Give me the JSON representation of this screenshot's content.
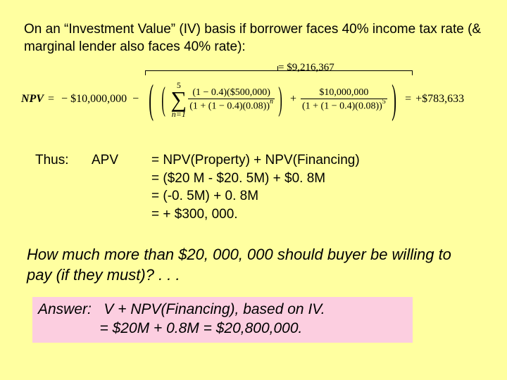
{
  "colors": {
    "slide_bg": "#ffffa0",
    "answer_bg": "#fccee0",
    "text": "#000000"
  },
  "intro": "On an “Investment Value” (IV) basis if borrower faces 40% income tax rate (& marginal lender also faces 40% rate):",
  "annot_top": "= $9,216,367",
  "formula": {
    "lhs": "NPV",
    "eq1": "=",
    "term1_minus": "−",
    "term1": "$10,000,000",
    "big_minus": "−",
    "sigma_top": "5",
    "sigma_bottom": "n=1",
    "frac1_num": "(1 − 0.4)($500,000)",
    "frac1_den_base": "(1 + (1 − 0.4)(0.08))",
    "frac1_exp": "n",
    "plus": "+",
    "frac2_num": "$10,000,000",
    "frac2_den_base": "(1 + (1 − 0.4)(0.08))",
    "frac2_exp": "5",
    "eq2": "=",
    "rhs": "+$783,633"
  },
  "thus": {
    "label": "Thus:",
    "apv": "APV",
    "line1": "= NPV(Property) + NPV(Financing)",
    "line2": "= ($20 M - $20. 5M) + $0. 8M",
    "line3": "= (-0. 5M) + 0. 8M",
    "line4": "= + $300, 000."
  },
  "question": "How much more than $20, 000, 000 should buyer be willing to pay (if they must)? . . .",
  "answer": {
    "label": "Answer:",
    "line1_rest": "V + NPV(Financing), based on IV.",
    "line2": "= $20M + 0.8M = $20,800,000."
  }
}
